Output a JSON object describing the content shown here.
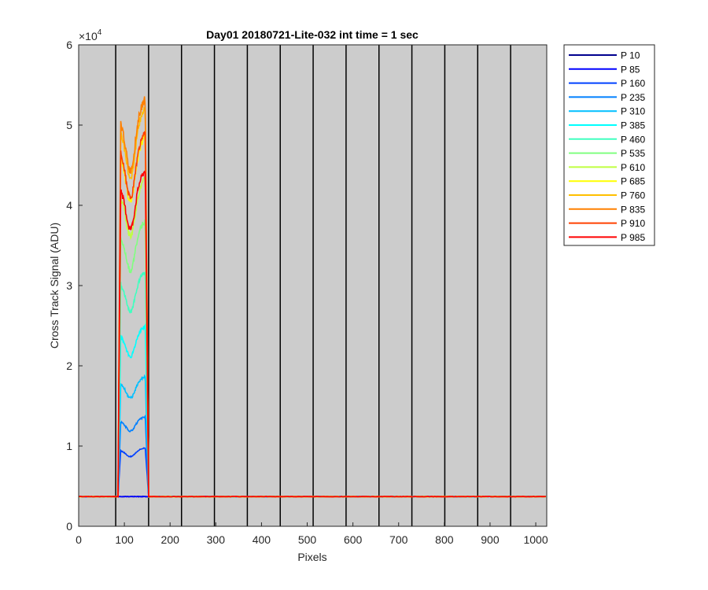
{
  "chart_data": {
    "type": "line",
    "title": "Day01 20180721-Lite-032 int time = 1 sec",
    "xlabel": "Pixels",
    "ylabel": "Cross Track Signal (ADU)",
    "xlim": [
      0,
      1024
    ],
    "ylim": [
      0,
      60000
    ],
    "y_exponent_label": "×10",
    "y_exponent_power": "4",
    "xticks": [
      0,
      100,
      200,
      300,
      400,
      500,
      600,
      700,
      800,
      900,
      1000
    ],
    "xtick_labels": [
      "0",
      "100",
      "200",
      "300",
      "400",
      "500",
      "600",
      "700",
      "800",
      "900",
      "1000"
    ],
    "yticks": [
      0,
      10000,
      20000,
      30000,
      40000,
      50000,
      60000
    ],
    "ytick_labels": [
      "0",
      "1",
      "2",
      "3",
      "4",
      "5",
      "6"
    ],
    "vertical_lines_x": [
      81,
      153,
      225,
      297,
      369,
      441,
      513,
      585,
      657,
      729,
      801,
      873,
      945
    ],
    "plot_background": "#cccccc",
    "grid": false,
    "legend_position": "outside-right",
    "baseline": 3700,
    "series": [
      {
        "name": "P 10",
        "color": "#00008f",
        "peak": 3700
      },
      {
        "name": "P 85",
        "color": "#0000ff",
        "peak": 3700
      },
      {
        "name": "P 160",
        "color": "#0040ff",
        "peak": 9500
      },
      {
        "name": "P 235",
        "color": "#0080ff",
        "peak": 13200
      },
      {
        "name": "P 310",
        "color": "#00bfff",
        "peak": 18000
      },
      {
        "name": "P 385",
        "color": "#00ffff",
        "peak": 24000
      },
      {
        "name": "P 460",
        "color": "#40ffbf",
        "peak": 30500
      },
      {
        "name": "P 535",
        "color": "#80ff80",
        "peak": 36500
      },
      {
        "name": "P 610",
        "color": "#bfff40",
        "peak": 41500
      },
      {
        "name": "P 685",
        "color": "#ffff00",
        "peak": 46500
      },
      {
        "name": "P 760",
        "color": "#ffbf00",
        "peak": 50000
      },
      {
        "name": "P 835",
        "color": "#ff8000",
        "peak": 51000
      },
      {
        "name": "P 910",
        "color": "#ff4000",
        "peak": 47000
      },
      {
        "name": "P 985",
        "color": "#ff0000",
        "peak": 42500
      }
    ]
  }
}
